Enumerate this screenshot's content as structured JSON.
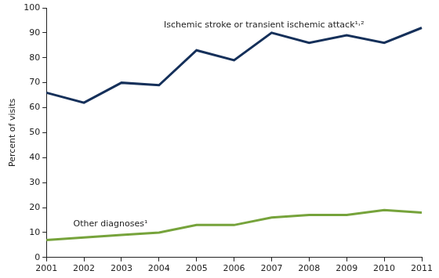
{
  "chart_data": {
    "type": "line",
    "y_label": "Percent of visits",
    "categories": [
      "2001",
      "2002",
      "2003",
      "2004",
      "2005",
      "2006",
      "2007",
      "2008",
      "2009",
      "2010",
      "2011"
    ],
    "series": [
      {
        "name": "Ischemic stroke or transient ischemic attack¹˒²",
        "color": "#15305a",
        "values": [
          66,
          62,
          70,
          69,
          83,
          79,
          90,
          86,
          89,
          86,
          92
        ]
      },
      {
        "name": "Other diagnoses¹",
        "color": "#76a33b",
        "values": [
          7,
          8,
          9,
          10,
          13,
          13,
          16,
          17,
          17,
          19,
          18
        ]
      }
    ],
    "ylim": [
      0,
      100
    ],
    "yticks": [
      0,
      10,
      20,
      30,
      40,
      50,
      60,
      70,
      80,
      90,
      100
    ],
    "grid": false
  }
}
